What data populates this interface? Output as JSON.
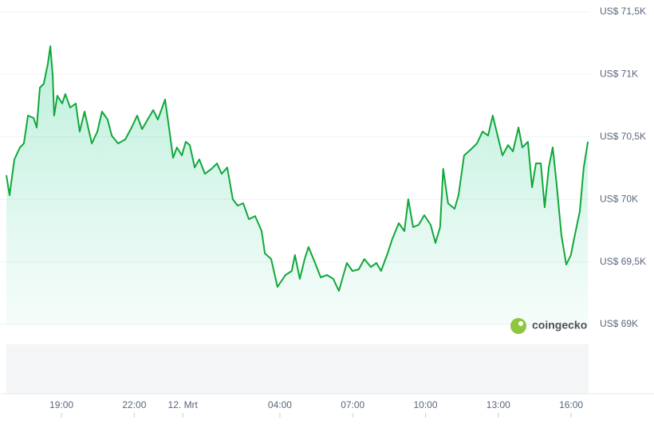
{
  "chart_data": {
    "type": "area",
    "watermark": "coingecko",
    "color": "#10a83a",
    "grid": true,
    "xlim": [
      16.73,
      40.72
    ],
    "xticks": [
      {
        "value": 19,
        "label": "19:00"
      },
      {
        "value": 22,
        "label": "22:00"
      },
      {
        "value": 24,
        "label": "12. Mrt"
      },
      {
        "value": 28,
        "label": "04:00"
      },
      {
        "value": 31,
        "label": "07:00"
      },
      {
        "value": 34,
        "label": "10:00"
      },
      {
        "value": 37,
        "label": "13:00"
      },
      {
        "value": 40,
        "label": "16:00"
      }
    ],
    "ylim": [
      69000,
      71500
    ],
    "yticks": [
      {
        "value": 69000,
        "label": "US$ 69K"
      },
      {
        "value": 69500,
        "label": "US$ 69,5K"
      },
      {
        "value": 70000,
        "label": "US$ 70K"
      },
      {
        "value": 70500,
        "label": "US$ 70,5K"
      },
      {
        "value": 71000,
        "label": "US$ 71K"
      },
      {
        "value": 71500,
        "label": "US$ 71,5K"
      }
    ],
    "x": [
      16.73,
      16.86,
      17.06,
      17.29,
      17.45,
      17.62,
      17.85,
      17.98,
      18.11,
      18.27,
      18.44,
      18.54,
      18.64,
      18.7,
      18.83,
      19.03,
      19.16,
      19.36,
      19.59,
      19.75,
      19.95,
      20.25,
      20.48,
      20.67,
      20.9,
      21.07,
      21.33,
      21.63,
      21.89,
      22.12,
      22.32,
      22.55,
      22.78,
      22.97,
      23.27,
      23.43,
      23.6,
      23.76,
      23.96,
      24.12,
      24.29,
      24.49,
      24.68,
      24.91,
      25.18,
      25.41,
      25.6,
      25.83,
      26.06,
      26.26,
      26.49,
      26.72,
      26.98,
      27.25,
      27.38,
      27.64,
      27.9,
      28.23,
      28.49,
      28.62,
      28.82,
      29.02,
      29.18,
      29.45,
      29.68,
      29.94,
      30.2,
      30.43,
      30.76,
      30.99,
      31.25,
      31.48,
      31.75,
      31.98,
      32.17,
      32.44,
      32.63,
      32.9,
      33.13,
      33.29,
      33.49,
      33.72,
      33.95,
      34.21,
      34.41,
      34.6,
      34.73,
      34.93,
      35.2,
      35.36,
      35.59,
      35.85,
      36.12,
      36.35,
      36.58,
      36.77,
      36.97,
      37.17,
      37.4,
      37.6,
      37.83,
      37.99,
      38.22,
      38.39,
      38.55,
      38.75,
      38.91,
      39.08,
      39.24,
      39.4,
      39.6,
      39.8,
      39.99,
      40.12,
      40.36,
      40.52,
      40.69
    ],
    "values": [
      70193,
      70033,
      70320,
      70416,
      70448,
      70671,
      70652,
      70575,
      70894,
      70926,
      71086,
      71226,
      70990,
      70671,
      70830,
      70767,
      70843,
      70735,
      70767,
      70543,
      70703,
      70448,
      70543,
      70703,
      70639,
      70511,
      70448,
      70480,
      70575,
      70671,
      70562,
      70639,
      70715,
      70639,
      70799,
      70575,
      70333,
      70416,
      70352,
      70461,
      70435,
      70256,
      70320,
      70205,
      70244,
      70288,
      70205,
      70256,
      70001,
      69950,
      69969,
      69842,
      69867,
      69746,
      69568,
      69523,
      69300,
      69395,
      69427,
      69555,
      69364,
      69523,
      69619,
      69491,
      69376,
      69395,
      69364,
      69268,
      69491,
      69427,
      69440,
      69523,
      69459,
      69491,
      69427,
      69568,
      69682,
      69810,
      69746,
      70001,
      69778,
      69797,
      69874,
      69797,
      69651,
      69778,
      70244,
      69969,
      69925,
      70033,
      70352,
      70397,
      70448,
      70543,
      70511,
      70671,
      70511,
      70352,
      70435,
      70384,
      70575,
      70416,
      70461,
      70097,
      70288,
      70288,
      69937,
      70256,
      70416,
      70129,
      69714,
      69478,
      69555,
      69682,
      69906,
      70256,
      70461
    ]
  }
}
